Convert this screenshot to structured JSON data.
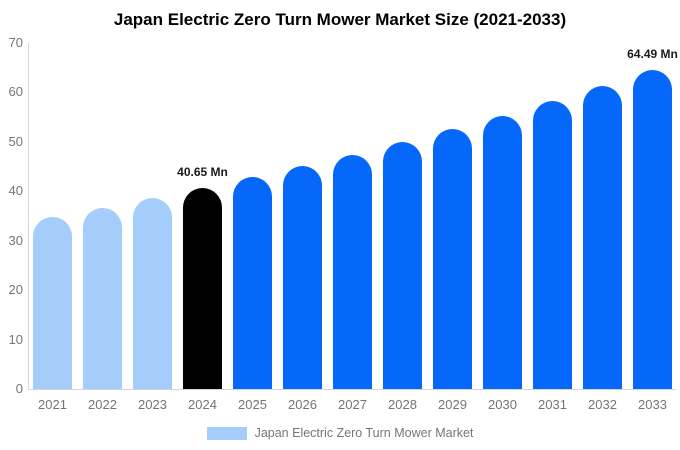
{
  "title": "Japan Electric Zero Turn Mower Market Size (2021-2033)",
  "chart_data": {
    "type": "bar",
    "title": "Japan Electric Zero Turn Mower Market Size (2021-2033)",
    "categories": [
      "2021",
      "2022",
      "2023",
      "2024",
      "2025",
      "2026",
      "2027",
      "2028",
      "2029",
      "2030",
      "2031",
      "2032",
      "2033"
    ],
    "values": [
      34.86,
      36.69,
      38.62,
      40.65,
      42.79,
      45.04,
      47.41,
      49.9,
      52.52,
      55.28,
      58.19,
      61.25,
      64.49
    ],
    "point_labels": [
      "",
      "",
      "",
      "40.65 Mn",
      "",
      "",
      "",
      "",
      "",
      "",
      "",
      "",
      "64.49 Mn"
    ],
    "bar_colors": [
      "#A5CDFB",
      "#A5CDFB",
      "#A5CDFB",
      "#000000",
      "#0667FB",
      "#0667FB",
      "#0667FB",
      "#0667FB",
      "#0667FB",
      "#0667FB",
      "#0667FB",
      "#0667FB",
      "#0667FB"
    ],
    "xlabel": "",
    "ylabel": "",
    "ylim": [
      0,
      70
    ],
    "yticks": [
      0,
      10,
      20,
      30,
      40,
      50,
      60,
      70
    ],
    "grid": false,
    "legend_position": "bottom"
  },
  "legend": {
    "label": "Japan Electric Zero Turn Mower Market",
    "swatch_color": "#A5CDFB"
  },
  "colors": {
    "historical_bar": "#A5CDFB",
    "highlight_bar": "#000000",
    "forecast_bar": "#0667FB",
    "axis_text": "#757575",
    "axis_line": "#D6D6D6",
    "value_label_text": "#1A1A1A"
  }
}
